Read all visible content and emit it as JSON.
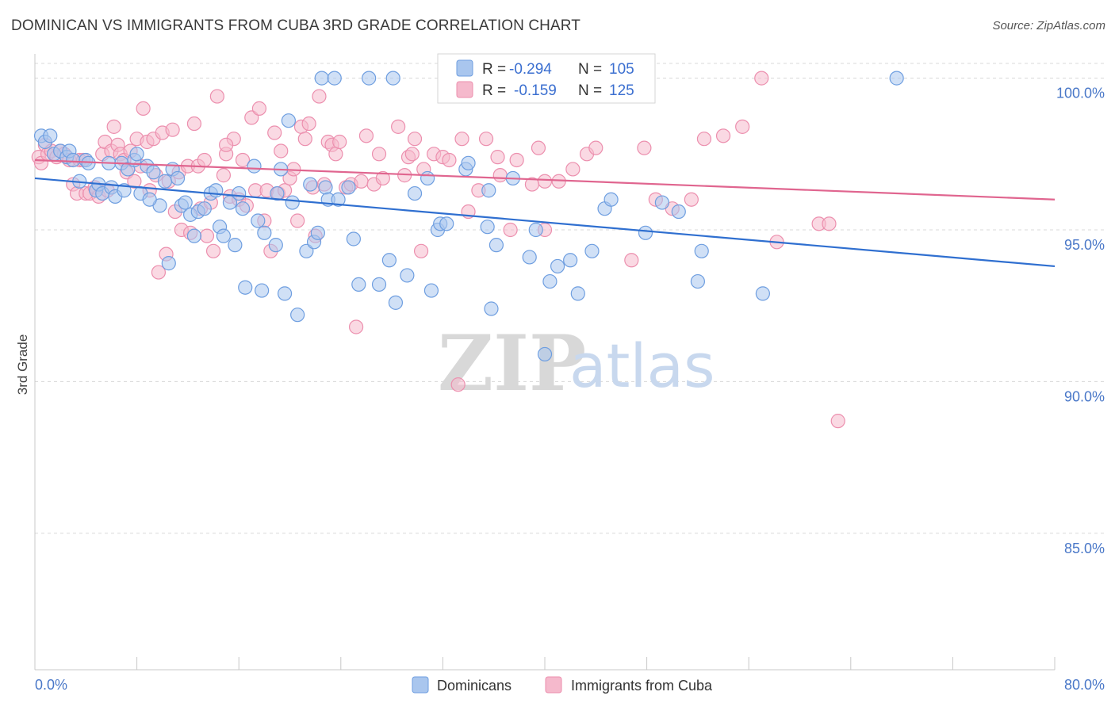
{
  "title": "DOMINICAN VS IMMIGRANTS FROM CUBA 3RD GRADE CORRELATION CHART",
  "source": "Source: ZipAtlas.com",
  "watermark": {
    "zip": "ZIP",
    "atlas": "atlas"
  },
  "colors": {
    "blue_fill": "#a9c6ee",
    "blue_stroke": "#6e9ee0",
    "blue_line": "#2f6fd0",
    "pink_fill": "#f5b9cc",
    "pink_stroke": "#ec8fae",
    "pink_line": "#e0658f",
    "grid": "#d8d8d8",
    "axis_text": "#4a78c8"
  },
  "legend": {
    "rows": [
      {
        "r_label": "R =",
        "r_value": "-0.294",
        "n_label": "N =",
        "n_value": "105"
      },
      {
        "r_label": "R =",
        "r_value": "-0.159",
        "n_label": "N =",
        "n_value": "125"
      }
    ]
  },
  "chart_data": {
    "type": "scatter",
    "title": "DOMINICAN VS IMMIGRANTS FROM CUBA 3RD GRADE CORRELATION CHART",
    "xlabel": "",
    "ylabel": "3rd Grade",
    "xlim": [
      0,
      80
    ],
    "ylim": [
      80.5,
      100.8
    ],
    "x_tick_labels": [
      "0.0%",
      "80.0%"
    ],
    "y_ticks": [
      85,
      90,
      95,
      100
    ],
    "y_tick_labels": [
      "85.0%",
      "90.0%",
      "95.0%",
      "100.0%"
    ],
    "grid": "horizontal dashed",
    "legend_placement": "top-center",
    "series": [
      {
        "name": "Dominicans",
        "r": -0.294,
        "n": 105,
        "trend": {
          "x": [
            0,
            80
          ],
          "y": [
            96.7,
            93.8
          ]
        },
        "points": [
          [
            0.5,
            98.1
          ],
          [
            0.8,
            97.9
          ],
          [
            1.2,
            98.1
          ],
          [
            1.5,
            97.5
          ],
          [
            2.0,
            97.6
          ],
          [
            2.5,
            97.4
          ],
          [
            2.7,
            97.6
          ],
          [
            3.0,
            97.3
          ],
          [
            3.5,
            96.6
          ],
          [
            4.0,
            97.3
          ],
          [
            4.2,
            97.2
          ],
          [
            4.8,
            96.3
          ],
          [
            5.0,
            96.5
          ],
          [
            5.3,
            96.2
          ],
          [
            5.8,
            97.2
          ],
          [
            6.0,
            96.4
          ],
          [
            6.3,
            96.1
          ],
          [
            6.8,
            97.2
          ],
          [
            7.0,
            96.3
          ],
          [
            7.3,
            97.0
          ],
          [
            7.8,
            97.3
          ],
          [
            8.0,
            97.5
          ],
          [
            8.3,
            96.2
          ],
          [
            8.8,
            97.1
          ],
          [
            9.3,
            96.9
          ],
          [
            9.8,
            95.8
          ],
          [
            10.2,
            96.6
          ],
          [
            10.5,
            93.9
          ],
          [
            10.8,
            97.0
          ],
          [
            11.2,
            96.7
          ],
          [
            11.5,
            95.8
          ],
          [
            11.8,
            95.9
          ],
          [
            12.2,
            95.5
          ],
          [
            12.5,
            94.8
          ],
          [
            12.8,
            95.6
          ],
          [
            13.3,
            95.7
          ],
          [
            13.8,
            96.2
          ],
          [
            14.2,
            96.3
          ],
          [
            14.5,
            95.1
          ],
          [
            14.8,
            94.8
          ],
          [
            15.3,
            95.9
          ],
          [
            15.7,
            94.5
          ],
          [
            16.0,
            96.2
          ],
          [
            16.3,
            95.7
          ],
          [
            16.5,
            93.1
          ],
          [
            17.2,
            97.1
          ],
          [
            17.5,
            95.3
          ],
          [
            17.8,
            93.0
          ],
          [
            18.0,
            94.9
          ],
          [
            19.0,
            96.2
          ],
          [
            19.3,
            97.0
          ],
          [
            19.6,
            92.9
          ],
          [
            19.9,
            98.6
          ],
          [
            20.2,
            95.9
          ],
          [
            20.6,
            92.2
          ],
          [
            21.3,
            94.3
          ],
          [
            21.6,
            96.5
          ],
          [
            21.9,
            94.6
          ],
          [
            22.2,
            94.9
          ],
          [
            22.5,
            100.0
          ],
          [
            22.8,
            96.4
          ],
          [
            23.0,
            96.0
          ],
          [
            23.5,
            100.0
          ],
          [
            23.8,
            96.0
          ],
          [
            24.6,
            96.4
          ],
          [
            25.0,
            94.7
          ],
          [
            25.4,
            93.2
          ],
          [
            26.2,
            100.0
          ],
          [
            27.0,
            93.2
          ],
          [
            28.1,
            100.0
          ],
          [
            28.3,
            92.6
          ],
          [
            29.2,
            93.5
          ],
          [
            29.8,
            96.2
          ],
          [
            30.8,
            96.7
          ],
          [
            31.1,
            93.0
          ],
          [
            31.6,
            95.0
          ],
          [
            31.8,
            95.2
          ],
          [
            32.3,
            95.2
          ],
          [
            33.8,
            97.0
          ],
          [
            34.0,
            97.2
          ],
          [
            35.5,
            95.1
          ],
          [
            35.8,
            92.4
          ],
          [
            35.6,
            96.3
          ],
          [
            37.5,
            96.7
          ],
          [
            38.8,
            94.1
          ],
          [
            39.3,
            95.0
          ],
          [
            40.0,
            90.9
          ],
          [
            40.4,
            93.3
          ],
          [
            41.0,
            93.8
          ],
          [
            42.6,
            92.9
          ],
          [
            43.7,
            94.3
          ],
          [
            44.7,
            95.7
          ],
          [
            45.2,
            96.0
          ],
          [
            47.9,
            94.9
          ],
          [
            49.2,
            95.9
          ],
          [
            50.5,
            95.6
          ],
          [
            52.0,
            93.3
          ],
          [
            52.3,
            94.3
          ],
          [
            57.1,
            92.9
          ],
          [
            67.6,
            100.0
          ],
          [
            42.0,
            94.0
          ],
          [
            36.2,
            94.5
          ],
          [
            27.8,
            94.0
          ],
          [
            18.9,
            94.5
          ],
          [
            9.0,
            96.0
          ]
        ]
      },
      {
        "name": "Immigrants from Cuba",
        "r": -0.159,
        "n": 125,
        "trend": {
          "x": [
            0,
            80
          ],
          "y": [
            97.3,
            96.0
          ]
        },
        "points": [
          [
            0.3,
            97.4
          ],
          [
            0.5,
            97.2
          ],
          [
            0.8,
            97.8
          ],
          [
            1.0,
            97.5
          ],
          [
            1.3,
            97.6
          ],
          [
            1.7,
            97.4
          ],
          [
            2.0,
            97.6
          ],
          [
            2.3,
            97.5
          ],
          [
            2.7,
            97.3
          ],
          [
            3.0,
            96.5
          ],
          [
            3.3,
            96.2
          ],
          [
            3.5,
            97.3
          ],
          [
            3.8,
            97.3
          ],
          [
            4.0,
            96.2
          ],
          [
            4.3,
            96.2
          ],
          [
            4.7,
            96.4
          ],
          [
            5.0,
            96.1
          ],
          [
            5.3,
            97.5
          ],
          [
            5.5,
            97.9
          ],
          [
            5.7,
            96.3
          ],
          [
            6.0,
            97.6
          ],
          [
            6.2,
            98.4
          ],
          [
            6.5,
            97.8
          ],
          [
            6.7,
            97.5
          ],
          [
            7.0,
            97.3
          ],
          [
            7.2,
            96.9
          ],
          [
            7.5,
            97.6
          ],
          [
            7.8,
            96.6
          ],
          [
            8.0,
            98.0
          ],
          [
            8.3,
            97.1
          ],
          [
            8.5,
            99.0
          ],
          [
            8.8,
            97.9
          ],
          [
            9.0,
            96.3
          ],
          [
            9.3,
            98.0
          ],
          [
            9.5,
            96.8
          ],
          [
            9.7,
            93.6
          ],
          [
            10.0,
            98.2
          ],
          [
            10.3,
            94.2
          ],
          [
            10.5,
            96.6
          ],
          [
            10.8,
            98.3
          ],
          [
            11.0,
            95.6
          ],
          [
            11.3,
            96.9
          ],
          [
            11.5,
            95.0
          ],
          [
            12.0,
            97.1
          ],
          [
            12.2,
            94.9
          ],
          [
            12.5,
            98.5
          ],
          [
            12.8,
            97.1
          ],
          [
            13.0,
            95.7
          ],
          [
            13.3,
            97.3
          ],
          [
            13.5,
            94.8
          ],
          [
            13.8,
            95.9
          ],
          [
            14.0,
            94.3
          ],
          [
            14.3,
            99.4
          ],
          [
            14.8,
            96.8
          ],
          [
            15.0,
            97.5
          ],
          [
            15.3,
            96.1
          ],
          [
            15.6,
            98.0
          ],
          [
            16.0,
            96.0
          ],
          [
            16.3,
            97.3
          ],
          [
            16.6,
            95.8
          ],
          [
            17.0,
            98.7
          ],
          [
            17.3,
            96.3
          ],
          [
            17.6,
            99.0
          ],
          [
            18.0,
            95.3
          ],
          [
            18.2,
            96.3
          ],
          [
            18.5,
            94.3
          ],
          [
            18.8,
            98.2
          ],
          [
            19.1,
            96.2
          ],
          [
            19.3,
            97.6
          ],
          [
            19.6,
            96.3
          ],
          [
            20.0,
            96.7
          ],
          [
            20.3,
            97.0
          ],
          [
            20.6,
            95.3
          ],
          [
            20.9,
            98.4
          ],
          [
            21.2,
            98.0
          ],
          [
            21.5,
            98.5
          ],
          [
            21.8,
            96.4
          ],
          [
            22.0,
            94.8
          ],
          [
            22.3,
            99.4
          ],
          [
            22.7,
            96.5
          ],
          [
            23.0,
            97.9
          ],
          [
            23.3,
            97.8
          ],
          [
            23.6,
            97.5
          ],
          [
            23.9,
            97.9
          ],
          [
            24.4,
            96.4
          ],
          [
            24.8,
            96.5
          ],
          [
            25.2,
            91.8
          ],
          [
            25.6,
            96.6
          ],
          [
            26.0,
            98.1
          ],
          [
            26.6,
            96.5
          ],
          [
            27.0,
            97.5
          ],
          [
            27.3,
            96.7
          ],
          [
            28.5,
            98.4
          ],
          [
            29.0,
            96.8
          ],
          [
            29.3,
            97.4
          ],
          [
            29.6,
            97.5
          ],
          [
            29.8,
            98.0
          ],
          [
            30.3,
            94.3
          ],
          [
            30.5,
            97.0
          ],
          [
            31.3,
            97.5
          ],
          [
            32.0,
            97.4
          ],
          [
            32.5,
            97.3
          ],
          [
            33.2,
            89.9
          ],
          [
            33.5,
            98.0
          ],
          [
            34.0,
            95.6
          ],
          [
            34.8,
            96.3
          ],
          [
            35.4,
            98.0
          ],
          [
            36.3,
            97.4
          ],
          [
            36.5,
            96.8
          ],
          [
            37.3,
            95.0
          ],
          [
            37.8,
            97.3
          ],
          [
            39.0,
            96.5
          ],
          [
            39.5,
            97.7
          ],
          [
            40.0,
            96.6
          ],
          [
            41.1,
            96.6
          ],
          [
            42.2,
            97.0
          ],
          [
            43.3,
            97.5
          ],
          [
            44.0,
            97.7
          ],
          [
            46.8,
            94.0
          ],
          [
            47.8,
            97.7
          ],
          [
            48.7,
            96.0
          ],
          [
            50.0,
            95.7
          ],
          [
            51.5,
            96.0
          ],
          [
            52.5,
            98.0
          ],
          [
            54.0,
            98.1
          ],
          [
            55.5,
            98.4
          ],
          [
            58.2,
            94.6
          ],
          [
            61.5,
            95.2
          ],
          [
            62.3,
            95.2
          ],
          [
            63.0,
            88.7
          ],
          [
            57.0,
            100.0
          ],
          [
            40.0,
            95.0
          ],
          [
            15.0,
            97.8
          ]
        ]
      }
    ]
  }
}
